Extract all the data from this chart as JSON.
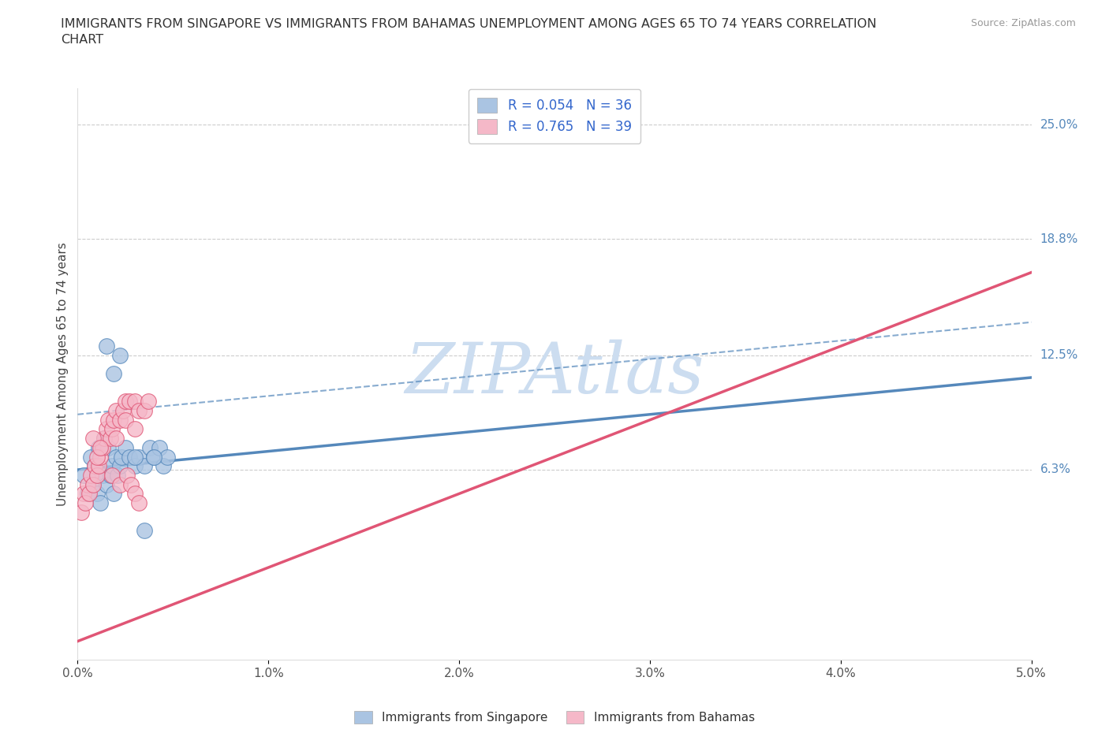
{
  "title": "IMMIGRANTS FROM SINGAPORE VS IMMIGRANTS FROM BAHAMAS UNEMPLOYMENT AMONG AGES 65 TO 74 YEARS CORRELATION\nCHART",
  "source": "Source: ZipAtlas.com",
  "ylabel": "Unemployment Among Ages 65 to 74 years",
  "legend_labels": [
    "Immigrants from Singapore",
    "Immigrants from Bahamas"
  ],
  "legend_R": [
    0.054,
    0.765
  ],
  "legend_N": [
    36,
    39
  ],
  "xlim": [
    0.0,
    0.05
  ],
  "ylim": [
    -0.04,
    0.27
  ],
  "yticks": [
    0.063,
    0.125,
    0.188,
    0.25
  ],
  "ytick_labels": [
    "6.3%",
    "12.5%",
    "18.8%",
    "25.0%"
  ],
  "xticks": [
    0.0,
    0.01,
    0.02,
    0.03,
    0.04,
    0.05
  ],
  "xtick_labels": [
    "0.0%",
    "1.0%",
    "2.0%",
    "3.0%",
    "4.0%",
    "5.0%"
  ],
  "color_singapore": "#aac4e2",
  "color_bahamas": "#f5b8c8",
  "trend_color_singapore": "#5588bb",
  "trend_color_bahamas": "#e05575",
  "watermark": "ZIPAtlas",
  "watermark_color": "#ccddf0",
  "singapore_x": [
    0.0003,
    0.0005,
    0.0007,
    0.0008,
    0.0009,
    0.001,
    0.001,
    0.0011,
    0.0012,
    0.0013,
    0.0014,
    0.0015,
    0.0016,
    0.0017,
    0.0018,
    0.0019,
    0.002,
    0.0021,
    0.0022,
    0.0023,
    0.0025,
    0.0027,
    0.003,
    0.0032,
    0.0035,
    0.0038,
    0.004,
    0.0043,
    0.0045,
    0.0047,
    0.0015,
    0.0019,
    0.0022,
    0.003,
    0.0035,
    0.004
  ],
  "singapore_y": [
    0.06,
    0.05,
    0.07,
    0.055,
    0.065,
    0.06,
    0.05,
    0.075,
    0.045,
    0.06,
    0.08,
    0.055,
    0.075,
    0.06,
    0.065,
    0.05,
    0.07,
    0.06,
    0.065,
    0.07,
    0.075,
    0.07,
    0.065,
    0.07,
    0.065,
    0.075,
    0.07,
    0.075,
    0.065,
    0.07,
    0.13,
    0.115,
    0.125,
    0.07,
    0.03,
    0.07
  ],
  "bahamas_x": [
    0.0002,
    0.0003,
    0.0004,
    0.0005,
    0.0006,
    0.0007,
    0.0008,
    0.0009,
    0.001,
    0.0011,
    0.0012,
    0.0013,
    0.0014,
    0.0015,
    0.0016,
    0.0017,
    0.0018,
    0.0019,
    0.002,
    0.0022,
    0.0024,
    0.0025,
    0.0027,
    0.003,
    0.0032,
    0.0035,
    0.0037,
    0.0008,
    0.001,
    0.0012,
    0.002,
    0.0025,
    0.003,
    0.0018,
    0.0022,
    0.0026,
    0.0028,
    0.003,
    0.0032
  ],
  "bahamas_y": [
    0.04,
    0.05,
    0.045,
    0.055,
    0.05,
    0.06,
    0.055,
    0.065,
    0.06,
    0.065,
    0.07,
    0.075,
    0.08,
    0.085,
    0.09,
    0.08,
    0.085,
    0.09,
    0.095,
    0.09,
    0.095,
    0.1,
    0.1,
    0.1,
    0.095,
    0.095,
    0.1,
    0.08,
    0.07,
    0.075,
    0.08,
    0.09,
    0.085,
    0.06,
    0.055,
    0.06,
    0.055,
    0.05,
    0.045
  ],
  "trend_sg_slope": 1.0,
  "trend_sg_intercept": 0.063,
  "trend_bh_slope": 4.0,
  "trend_bh_intercept": -0.03
}
